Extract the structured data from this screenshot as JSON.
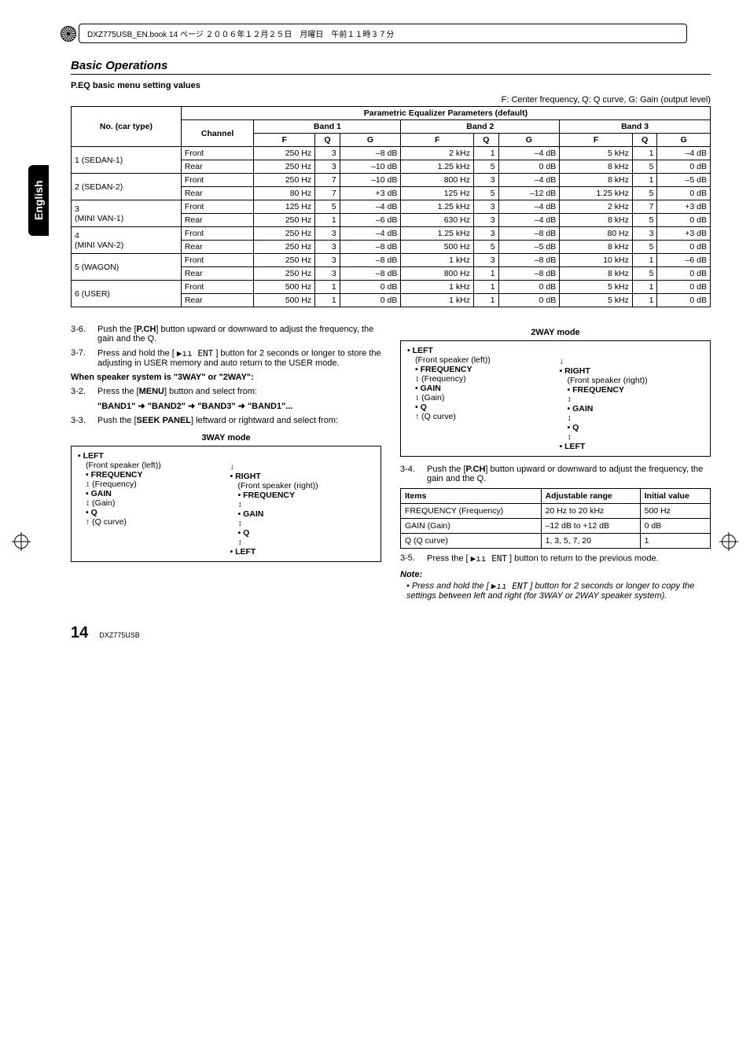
{
  "header_bar": "DXZ775USB_EN.book  14 ページ  ２００６年１２月２５日　月曜日　午前１１時３７分",
  "section_title": "Basic Operations",
  "language_tab": "English",
  "peq_heading": "P.EQ basic menu setting values",
  "legend": "F: Center frequency, Q: Q curve, G: Gain (output level)",
  "table_header_group": "Parametric Equalizer Parameters (default)",
  "row_header_cartype": "No. (car type)",
  "row_header_channel": "Channel",
  "bands": [
    "Band 1",
    "Band 2",
    "Band 3"
  ],
  "cols": [
    "F",
    "Q",
    "G"
  ],
  "car_types": [
    {
      "label": "1 (SEDAN-1)",
      "rows": [
        {
          "ch": "Front",
          "b1": [
            "250 Hz",
            "3",
            "–8 dB"
          ],
          "b2": [
            "2 kHz",
            "1",
            "–4 dB"
          ],
          "b3": [
            "5 kHz",
            "1",
            "–4 dB"
          ]
        },
        {
          "ch": "Rear",
          "b1": [
            "250 Hz",
            "3",
            "–10 dB"
          ],
          "b2": [
            "1.25 kHz",
            "5",
            "0 dB"
          ],
          "b3": [
            "8 kHz",
            "5",
            "0 dB"
          ]
        }
      ]
    },
    {
      "label": "2 (SEDAN-2)",
      "rows": [
        {
          "ch": "Front",
          "b1": [
            "250 Hz",
            "7",
            "–10 dB"
          ],
          "b2": [
            "800 Hz",
            "3",
            "–4 dB"
          ],
          "b3": [
            "8 kHz",
            "1",
            "–5 dB"
          ]
        },
        {
          "ch": "Rear",
          "b1": [
            "80 Hz",
            "7",
            "+3 dB"
          ],
          "b2": [
            "125 Hz",
            "5",
            "–12 dB"
          ],
          "b3": [
            "1.25 kHz",
            "5",
            "0 dB"
          ]
        }
      ]
    },
    {
      "label": "3\n(MINI VAN-1)",
      "rows": [
        {
          "ch": "Front",
          "b1": [
            "125 Hz",
            "5",
            "–4 dB"
          ],
          "b2": [
            "1.25 kHz",
            "3",
            "–4 dB"
          ],
          "b3": [
            "2 kHz",
            "7",
            "+3 dB"
          ]
        },
        {
          "ch": "Rear",
          "b1": [
            "250 Hz",
            "1",
            "–6 dB"
          ],
          "b2": [
            "630 Hz",
            "3",
            "–4 dB"
          ],
          "b3": [
            "8 kHz",
            "5",
            "0 dB"
          ]
        }
      ]
    },
    {
      "label": "4\n(MINI VAN-2)",
      "rows": [
        {
          "ch": "Front",
          "b1": [
            "250 Hz",
            "3",
            "–4 dB"
          ],
          "b2": [
            "1.25 kHz",
            "3",
            "–8 dB"
          ],
          "b3": [
            "80 Hz",
            "3",
            "+3 dB"
          ]
        },
        {
          "ch": "Rear",
          "b1": [
            "250 Hz",
            "3",
            "–8 dB"
          ],
          "b2": [
            "500 Hz",
            "5",
            "–5 dB"
          ],
          "b3": [
            "8 kHz",
            "5",
            "0 dB"
          ]
        }
      ]
    },
    {
      "label": "5 (WAGON)",
      "rows": [
        {
          "ch": "Front",
          "b1": [
            "250 Hz",
            "3",
            "–8 dB"
          ],
          "b2": [
            "1 kHz",
            "3",
            "–8 dB"
          ],
          "b3": [
            "10 kHz",
            "1",
            "–6 dB"
          ]
        },
        {
          "ch": "Rear",
          "b1": [
            "250 Hz",
            "3",
            "–8 dB"
          ],
          "b2": [
            "800 Hz",
            "1",
            "–8 dB"
          ],
          "b3": [
            "8 kHz",
            "5",
            "0 dB"
          ]
        }
      ]
    },
    {
      "label": "6 (USER)",
      "rows": [
        {
          "ch": "Front",
          "b1": [
            "500 Hz",
            "1",
            "0 dB"
          ],
          "b2": [
            "1 kHz",
            "1",
            "0 dB"
          ],
          "b3": [
            "5 kHz",
            "1",
            "0 dB"
          ]
        },
        {
          "ch": "Rear",
          "b1": [
            "500 Hz",
            "1",
            "0 dB"
          ],
          "b2": [
            "1 kHz",
            "1",
            "0 dB"
          ],
          "b3": [
            "5 kHz",
            "1",
            "0 dB"
          ]
        }
      ]
    }
  ],
  "left": {
    "s36_num": "3-6.",
    "s36_body_a": "Push the [",
    "s36_body_bold": "P.CH",
    "s36_body_b": "] button upward or downward to adjust the frequency, the gain and the Q.",
    "s37_num": "3-7.",
    "s37_body_a": "Press and hold the [ ",
    "s37_icon": "▶ıı ENT",
    "s37_body_b": " ] button for 2 seconds or longer to store the adjusting in USER memory and auto return to the USER mode.",
    "when_heading": "When speaker system is \"3WAY\" or \"2WAY\":",
    "s32_num": "3-2.",
    "s32_a": "Press the [",
    "s32_menu": "MENU",
    "s32_b": "] button and select from:",
    "s32_chain": "\"BAND1\" ➜ \"BAND2\" ➜ \"BAND3\" ➜ \"BAND1\"...",
    "s33_num": "3-3.",
    "s33_a": "Push the [",
    "s33_seek": "SEEK PANEL",
    "s33_b": "] leftward or rightward and select from:",
    "mode3_title": "3WAY mode",
    "flow": {
      "left_lbl": "• LEFT",
      "left_sub": "(Front speaker (left))",
      "freq_lbl": "• FREQUENCY",
      "freq_sub": "(Frequency)",
      "gain_lbl": "• GAIN",
      "gain_sub": "(Gain)",
      "q_lbl": "• Q",
      "q_sub": "(Q curve)",
      "right_lbl": "• RIGHT",
      "right_sub": "(Front speaker (right))",
      "r_freq": "• FREQUENCY",
      "r_gain": "• GAIN",
      "r_q": "• Q",
      "back_left": "• LEFT"
    }
  },
  "right": {
    "mode2_title": "2WAY mode",
    "s34_num": "3-4.",
    "s34_a": "Push the [",
    "s34_pch": "P.CH",
    "s34_b": "] button upward or downward to adjust the frequency, the gain and the Q.",
    "tbl_headers": [
      "Items",
      "Adjustable range",
      "Initial value"
    ],
    "tbl_rows": [
      [
        "FREQUENCY (Frequency)",
        "20 Hz to 20 kHz",
        "500 Hz"
      ],
      [
        "GAIN (Gain)",
        "–12 dB to +12 dB",
        "0 dB"
      ],
      [
        "Q (Q curve)",
        "1, 3, 5, 7, 20",
        "1"
      ]
    ],
    "s35_num": "3-5.",
    "s35_a": "Press the [ ",
    "s35_icon": "▶ıı ENT",
    "s35_b": " ] button to return to the previous mode.",
    "note_title": "Note:",
    "note_body_a": "Press and hold the [ ",
    "note_icon": "▶ıı ENT",
    "note_body_b": " ] button for 2 seconds or longer to copy the settings between left and right (for 3WAY or 2WAY speaker system)."
  },
  "footer": {
    "page": "14",
    "model": "DXZ775USB"
  }
}
